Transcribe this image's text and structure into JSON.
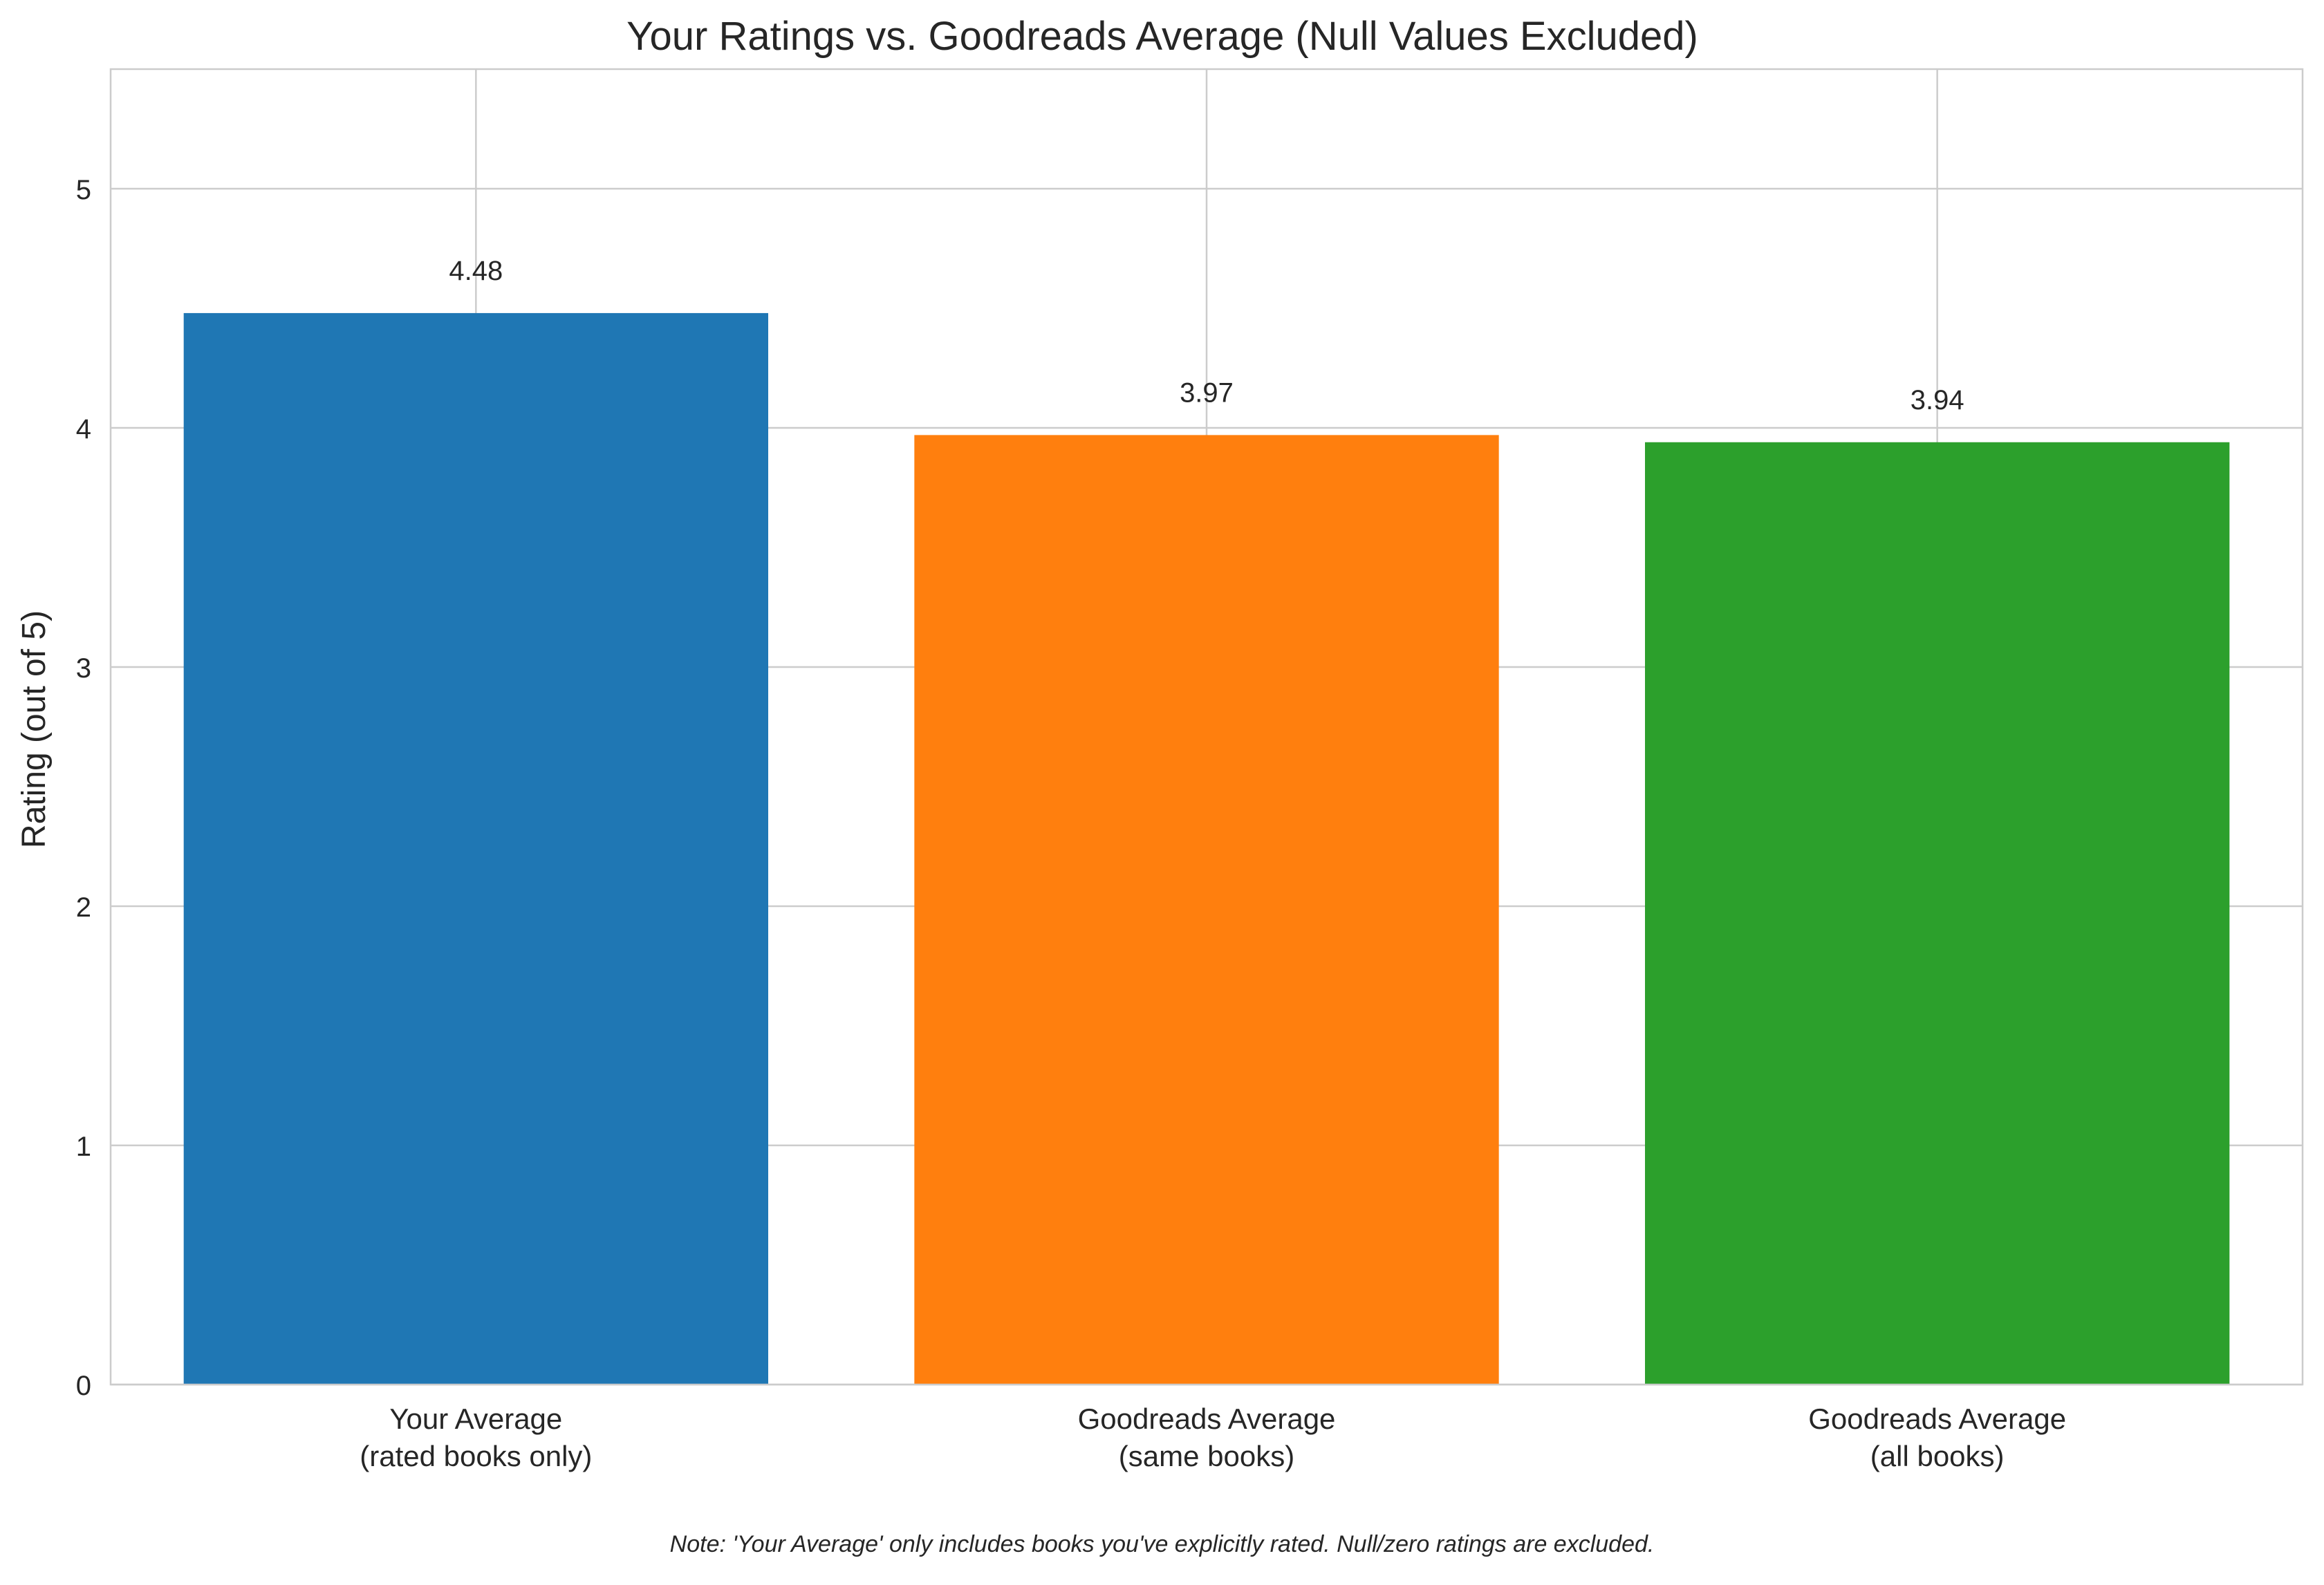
{
  "chart_data": {
    "type": "bar",
    "title": "Your Ratings vs. Goodreads Average (Null Values Excluded)",
    "xlabel": "",
    "ylabel": "Rating (out of 5)",
    "ylim": [
      0,
      5.5
    ],
    "yticks": [
      "0",
      "1",
      "2",
      "3",
      "4",
      "5"
    ],
    "categories": [
      [
        "Your Average",
        "(rated books only)"
      ],
      [
        "Goodreads Average",
        "(same books)"
      ],
      [
        "Goodreads Average",
        "(all books)"
      ]
    ],
    "values": [
      4.48,
      3.97,
      3.94
    ],
    "data_labels": [
      "4.48",
      "3.97",
      "3.94"
    ],
    "colors": [
      "#1f77b4",
      "#ff7f0e",
      "#2ca02c"
    ],
    "grid": true,
    "legend": "none"
  },
  "note": "Note: 'Your Average' only includes books you've explicitly rated. Null/zero ratings are excluded."
}
